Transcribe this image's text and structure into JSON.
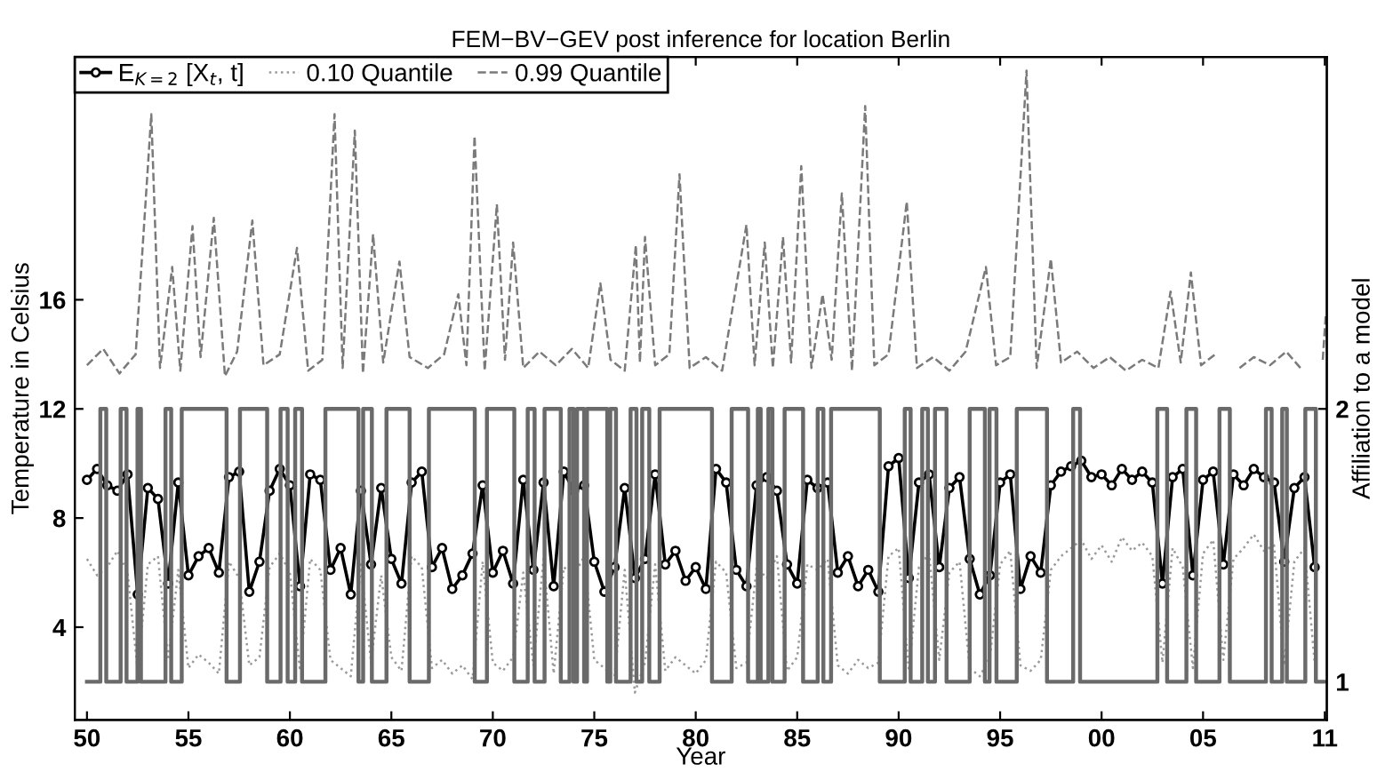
{
  "chart_data": {
    "type": "line",
    "title": "FEM−BV−GEV post inference for location Berlin",
    "xlabel": "Year",
    "ylabel": "Temperature in Celsius",
    "y2label": "Affiliation to a model",
    "x": [
      1950.0,
      1950.5,
      1951.0,
      1951.5,
      1952.0,
      1952.5,
      1953.0,
      1953.5,
      1954.0,
      1954.5,
      1955.0,
      1955.5,
      1956.0,
      1956.5,
      1957.0,
      1957.5,
      1958.0,
      1958.5,
      1959.0,
      1959.5,
      1960.0,
      1960.5,
      1961.0,
      1961.5,
      1962.0,
      1962.5,
      1963.0,
      1963.5,
      1964.0,
      1964.5,
      1965.0,
      1965.5,
      1966.0,
      1966.5,
      1967.0,
      1967.5,
      1968.0,
      1968.5,
      1969.0,
      1969.5,
      1970.0,
      1970.5,
      1971.0,
      1971.5,
      1972.0,
      1972.5,
      1973.0,
      1973.5,
      1974.0,
      1974.5,
      1975.0,
      1975.5,
      1976.0,
      1976.5,
      1977.0,
      1977.5,
      1978.0,
      1978.5,
      1979.0,
      1979.5,
      1980.0,
      1980.5,
      1981.0,
      1981.5,
      1982.0,
      1982.5,
      1983.0,
      1983.5,
      1984.0,
      1984.5,
      1985.0,
      1985.5,
      1986.0,
      1986.5,
      1987.0,
      1987.5,
      1988.0,
      1988.5,
      1989.0,
      1989.5,
      1990.0,
      1990.5,
      1991.0,
      1991.5,
      1992.0,
      1992.5,
      1993.0,
      1993.5,
      1994.0,
      1994.5,
      1995.0,
      1995.5,
      1996.0,
      1996.5,
      1997.0,
      1997.5,
      1998.0,
      1998.5,
      1999.0,
      1999.5,
      2000.0,
      2000.5,
      2001.0,
      2001.5,
      2002.0,
      2002.5,
      2003.0,
      2003.5,
      2004.0,
      2004.5,
      2005.0,
      2005.5,
      2006.0,
      2006.5,
      2007.0,
      2007.5,
      2008.0,
      2008.5,
      2009.0,
      2009.5,
      2010.0,
      2010.5
    ],
    "series": [
      {
        "name": "E$_{K=2}$ [X$_{t}$, t]",
        "color": "#000000",
        "marker": "circle",
        "line_style": "solid",
        "values": [
          9.4,
          9.8,
          9.2,
          9.0,
          9.6,
          5.2,
          9.1,
          8.7,
          5.6,
          9.3,
          5.9,
          6.6,
          6.9,
          6.0,
          9.5,
          9.7,
          5.3,
          6.4,
          9.0,
          9.8,
          9.2,
          5.5,
          9.6,
          9.4,
          6.1,
          6.9,
          5.2,
          9.0,
          6.3,
          9.1,
          6.5,
          5.6,
          9.3,
          9.7,
          6.2,
          6.9,
          5.4,
          5.9,
          6.7,
          9.2,
          6.0,
          6.8,
          5.6,
          9.4,
          6.1,
          9.3,
          5.5,
          9.7,
          9.0,
          9.2,
          6.4,
          5.3,
          6.2,
          9.1,
          5.8,
          6.5,
          9.6,
          6.3,
          6.8,
          5.7,
          6.2,
          5.4,
          9.8,
          9.3,
          6.1,
          5.5,
          9.2,
          9.5,
          9.0,
          6.3,
          5.6,
          9.4,
          9.1,
          9.3,
          6.0,
          6.6,
          5.5,
          6.1,
          5.3,
          9.9,
          10.2,
          5.8,
          9.3,
          9.6,
          6.2,
          9.1,
          9.5,
          6.5,
          5.2,
          5.9,
          9.3,
          9.6,
          5.4,
          6.6,
          6.0,
          9.2,
          9.7,
          9.9,
          10.1,
          9.5,
          9.6,
          9.2,
          9.8,
          9.4,
          9.7,
          9.3,
          5.6,
          9.5,
          9.8,
          5.9,
          9.4,
          9.7,
          6.3,
          9.6,
          9.2,
          9.8,
          9.5,
          9.3,
          6.4,
          9.1,
          9.5,
          6.2
        ]
      },
      {
        "name": "0.10 Quantile",
        "color": "#9a9a9a",
        "line_style": "dotted",
        "values": [
          6.5,
          5.9,
          6.2,
          6.8,
          6.0,
          2.4,
          6.3,
          6.6,
          2.8,
          6.1,
          2.5,
          3.0,
          2.7,
          2.3,
          6.4,
          5.8,
          2.6,
          2.9,
          6.2,
          6.7,
          6.0,
          2.4,
          6.5,
          6.1,
          2.8,
          2.5,
          2.2,
          6.3,
          2.7,
          5.9,
          2.9,
          2.4,
          6.6,
          6.2,
          2.5,
          2.8,
          2.3,
          2.6,
          2.1,
          6.4,
          2.7,
          2.4,
          2.9,
          6.0,
          2.6,
          6.5,
          2.3,
          6.2,
          5.9,
          6.6,
          2.8,
          2.5,
          2.2,
          6.1,
          1.6,
          2.7,
          6.3,
          2.4,
          2.9,
          2.6,
          2.3,
          2.8,
          6.4,
          6.0,
          2.5,
          2.7,
          6.2,
          5.8,
          6.6,
          2.4,
          2.9,
          6.3,
          6.1,
          6.5,
          2.6,
          2.3,
          2.8,
          2.5,
          2.7,
          6.6,
          6.9,
          2.4,
          6.2,
          6.7,
          2.8,
          6.0,
          6.4,
          2.5,
          2.2,
          2.9,
          6.3,
          6.8,
          2.6,
          2.4,
          2.8,
          6.1,
          6.6,
          6.9,
          7.2,
          6.5,
          7.0,
          6.4,
          7.3,
          6.8,
          7.1,
          6.6,
          2.7,
          6.9,
          6.2,
          2.5,
          6.7,
          7.2,
          2.8,
          6.5,
          6.9,
          7.4,
          6.8,
          7.0,
          2.6,
          6.4,
          6.9,
          2.7
        ]
      },
      {
        "name": "0.99 Quantile",
        "color": "#7a7a7a",
        "line_style": "dashed",
        "x": [
          1950.0,
          1950.8,
          1951.6,
          1952.4,
          1953.17,
          1953.6,
          1954.2,
          1954.6,
          1955.2,
          1955.6,
          1956.25,
          1956.8,
          1957.4,
          1958.15,
          1958.7,
          1959.5,
          1960.35,
          1960.9,
          1961.6,
          1962.2,
          1962.6,
          1963.2,
          1963.6,
          1964.1,
          1964.6,
          1965.4,
          1965.9,
          1966.8,
          1967.6,
          1968.3,
          1968.7,
          1969.1,
          1969.6,
          1970.2,
          1970.6,
          1971.0,
          1971.5,
          1972.3,
          1973.1,
          1973.9,
          1974.7,
          1975.3,
          1975.8,
          1976.5,
          1977.05,
          1977.25,
          1977.5,
          1978.0,
          1978.7,
          1979.2,
          1979.7,
          1980.5,
          1981.3,
          1982.5,
          1982.9,
          1983.4,
          1983.8,
          1984.3,
          1984.7,
          1985.2,
          1985.7,
          1986.25,
          1986.7,
          1987.2,
          1987.7,
          1988.35,
          1988.8,
          1989.5,
          1990.4,
          1990.9,
          1991.7,
          1992.5,
          1993.3,
          1994.3,
          1994.8,
          1995.5,
          1996.3,
          1996.8,
          1997.5,
          1998.0,
          1998.8,
          1999.6,
          2000.4,
          2001.2,
          2002.0,
          2002.8,
          2003.4,
          2003.9,
          2004.4,
          2004.9,
          2005.6,
          2006.4,
          2006.8,
          2007.5,
          2008.3,
          2009.1,
          2009.8,
          2010.3,
          2010.9,
          2011.05
        ],
        "values": [
          13.6,
          14.2,
          13.3,
          14.0,
          22.8,
          13.5,
          17.2,
          13.4,
          18.7,
          13.9,
          19.0,
          13.2,
          14.1,
          18.9,
          13.6,
          14.0,
          17.9,
          13.4,
          13.8,
          22.8,
          13.5,
          22.2,
          13.3,
          18.4,
          13.7,
          17.4,
          13.9,
          13.5,
          14.0,
          16.2,
          13.6,
          22.0,
          13.4,
          19.5,
          13.8,
          18.1,
          13.5,
          14.1,
          13.6,
          14.2,
          13.5,
          16.6,
          13.8,
          13.4,
          18.0,
          13.7,
          18.3,
          13.6,
          14.0,
          20.6,
          13.5,
          13.9,
          13.4,
          18.75,
          13.6,
          18.1,
          13.5,
          18.3,
          13.7,
          20.9,
          13.5,
          16.2,
          13.8,
          19.9,
          13.4,
          23.1,
          13.6,
          14.0,
          19.6,
          13.5,
          13.9,
          13.4,
          14.1,
          17.2,
          13.6,
          13.9,
          24.4,
          13.5,
          17.5,
          13.7,
          14.1,
          13.5,
          13.9,
          13.4,
          13.8,
          13.5,
          16.3,
          13.7,
          17.0,
          13.6,
          14.0,
          null,
          13.5,
          13.9,
          13.6,
          14.1,
          13.5,
          null,
          13.8,
          15.5
        ]
      },
      {
        "type": "step",
        "axis": "y2",
        "color": "#6a6a6a",
        "line_style": "solid",
        "x": [
          1950.0,
          1950.66,
          1950.95,
          1951.66,
          1951.95,
          1952.49,
          1952.66,
          1953.87,
          1954.15,
          1954.67,
          1956.88,
          1957.54,
          1958.88,
          1959.54,
          1959.89,
          1960.26,
          1960.6,
          1961.75,
          1963.38,
          1963.61,
          1964.04,
          1964.76,
          1965.9,
          1966.85,
          1969.11,
          1969.71,
          1971.06,
          1971.72,
          1972.06,
          1972.55,
          1973.35,
          1973.78,
          1973.98,
          1974.15,
          1974.5,
          1974.64,
          1975.64,
          1975.79,
          1976.07,
          1976.79,
          1977.08,
          1977.36,
          1977.71,
          1978.22,
          1980.8,
          1981.77,
          1982.58,
          1983.06,
          1983.2,
          1983.58,
          1983.78,
          1984.38,
          1985.29,
          1986.01,
          1986.29,
          1986.67,
          1989.07,
          1990.3,
          1990.59,
          1991.16,
          1991.44,
          1991.79,
          1992.36,
          1993.5,
          1994.25,
          1994.48,
          1994.82,
          1995.82,
          1997.31,
          1998.6,
          1998.94,
          2002.75,
          2003.23,
          2004.18,
          2004.66,
          2005.81,
          2006.32,
          2008.1,
          2008.38,
          2008.9,
          2009.13,
          2010.04,
          2010.56,
          2010.95
        ],
        "values": [
          1,
          2,
          1,
          2,
          1,
          2,
          1,
          2,
          1,
          2,
          1,
          2,
          1,
          2,
          1,
          2,
          1,
          2,
          1,
          2,
          1,
          2,
          1,
          2,
          1,
          2,
          1,
          2,
          1,
          2,
          1,
          2,
          1,
          2,
          1,
          2,
          1,
          2,
          1,
          2,
          1,
          2,
          1,
          2,
          1,
          2,
          1,
          2,
          1,
          2,
          1,
          2,
          1,
          2,
          1,
          2,
          1,
          2,
          1,
          2,
          1,
          2,
          1,
          2,
          1,
          2,
          1,
          2,
          1,
          2,
          1,
          2,
          1,
          2,
          1,
          2,
          1,
          2,
          1,
          2,
          1,
          2,
          1,
          1
        ]
      }
    ],
    "xlim": [
      1949.4,
      2011.1
    ],
    "ylim": [
      0.6,
      24.9
    ],
    "y2lim": [
      0.86,
      3.29
    ],
    "xticks": [
      {
        "value": 1950,
        "label": "50"
      },
      {
        "value": 1955,
        "label": "55"
      },
      {
        "value": 1960,
        "label": "60"
      },
      {
        "value": 1965,
        "label": "65"
      },
      {
        "value": 1970,
        "label": "70"
      },
      {
        "value": 1975,
        "label": "75"
      },
      {
        "value": 1980,
        "label": "80"
      },
      {
        "value": 1985,
        "label": "85"
      },
      {
        "value": 1990,
        "label": "90"
      },
      {
        "value": 1995,
        "label": "95"
      },
      {
        "value": 2000,
        "label": "00"
      },
      {
        "value": 2005,
        "label": "05"
      },
      {
        "value": 2011,
        "label": "11"
      }
    ],
    "yticks": [
      4,
      8,
      12,
      16
    ],
    "y2ticks": [
      1,
      2
    ],
    "grid": false,
    "legend": "top left"
  }
}
